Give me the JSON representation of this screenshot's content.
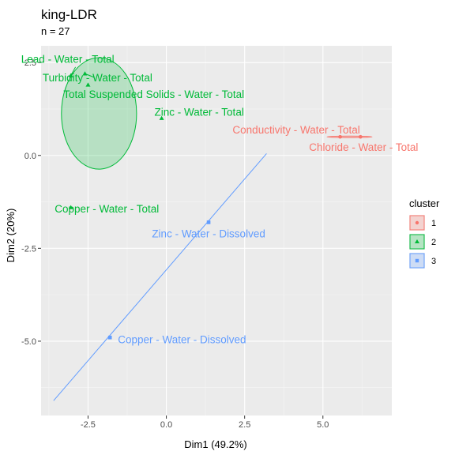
{
  "chart_data": {
    "type": "scatter",
    "title": "king-LDR",
    "subtitle": "n = 27",
    "xlabel": "Dim1 (49.2%)",
    "ylabel": "Dim2 (20%)",
    "xlim": [
      -4.0,
      7.2
    ],
    "ylim": [
      -7.0,
      2.95
    ],
    "x_ticks": [
      -2.5,
      0.0,
      2.5,
      5.0
    ],
    "x_tick_labels": [
      "-2.5",
      "0.0",
      "2.5",
      "5.0"
    ],
    "y_ticks": [
      2.5,
      0.0,
      -2.5,
      -5.0
    ],
    "y_tick_labels": [
      "2.5",
      "0.0",
      "-2.5",
      "-5.0"
    ],
    "grid": true,
    "legend": {
      "title": "cluster",
      "position": "right",
      "entries": [
        {
          "label": "1",
          "color": "#F8766D"
        },
        {
          "label": "2",
          "color": "#00BA38"
        },
        {
          "label": "3",
          "color": "#619CFF"
        }
      ]
    },
    "series": [
      {
        "name": "1",
        "color": "#F8766D",
        "fill": "#F8766D",
        "points": [
          {
            "label": "Conductivity - Water - Total",
            "x": 5.55,
            "y": 0.5
          },
          {
            "label": "Chloride - Water - Total",
            "x": 6.2,
            "y": 0.5
          }
        ],
        "ellipse": {
          "cx": 5.85,
          "cy": 0.5,
          "rx": 0.72,
          "ry": 0.015
        },
        "label_positions": [
          {
            "x": 4.15,
            "y": 0.7
          },
          {
            "x": 6.3,
            "y": 0.23
          }
        ]
      },
      {
        "name": "2",
        "color": "#00BA38",
        "fill": "#00BA38",
        "points": [
          {
            "label": "Lead - Water - Total",
            "x": -3.05,
            "y": 2.15
          },
          {
            "label": "Turbidity - Water - Total",
            "x": -2.6,
            "y": 2.2
          },
          {
            "label": "Total Suspended Solids - Water - Total",
            "x": -2.5,
            "y": 1.9
          },
          {
            "label": "Zinc - Water - Total",
            "x": -0.15,
            "y": 1.0
          },
          {
            "label": "Copper - Water - Total",
            "x": -3.05,
            "y": -1.4
          }
        ],
        "ellipse": {
          "cx": -2.15,
          "cy": 1.13,
          "rx": 1.2,
          "ry": 1.5
        },
        "label_positions": [
          {
            "x": -3.15,
            "y": 2.6
          },
          {
            "x": -2.2,
            "y": 2.1
          },
          {
            "x": -0.4,
            "y": 1.65
          },
          {
            "x": 1.05,
            "y": 1.17
          },
          {
            "x": -1.9,
            "y": -1.43
          }
        ]
      },
      {
        "name": "3",
        "color": "#619CFF",
        "fill": "#619CFF",
        "points": [
          {
            "label": "Zinc - Water - Dissolved",
            "x": 1.35,
            "y": -1.8
          },
          {
            "label": "Copper - Water - Dissolved",
            "x": -1.8,
            "y": -4.9
          }
        ],
        "line": {
          "x1": -3.6,
          "y1": -6.6,
          "x2": 3.2,
          "y2": 0.05
        },
        "label_positions": [
          {
            "x": 1.35,
            "y": -2.1
          },
          {
            "x": 0.5,
            "y": -4.95
          }
        ]
      }
    ],
    "connectors": [
      {
        "from": [
          -2.9,
          2.38
        ],
        "to": [
          -3.05,
          2.15
        ],
        "color": "#00BA38"
      },
      {
        "from": [
          -2.3,
          2.1
        ],
        "to": [
          -2.6,
          2.2
        ],
        "color": "#00BA38"
      }
    ]
  }
}
